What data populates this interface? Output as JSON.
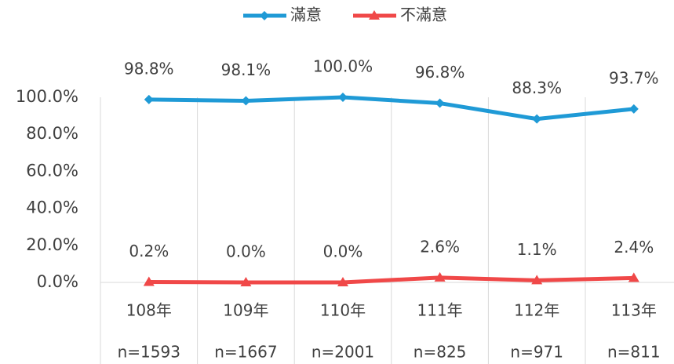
{
  "chart_data": {
    "type": "line",
    "categories": [
      "108年",
      "109年",
      "110年",
      "111年",
      "112年",
      "113年"
    ],
    "category_notes": [
      "n=1593",
      "n=1667",
      "n=2001",
      "n=825",
      "n=971",
      "n=811"
    ],
    "series": [
      {
        "name": "滿意",
        "color": "#1f9ad6",
        "marker": "diamond",
        "values": [
          98.8,
          98.1,
          100.0,
          96.8,
          88.3,
          93.7
        ],
        "value_labels": [
          "98.8%",
          "98.1%",
          "100.0%",
          "96.8%",
          "88.3%",
          "93.7%"
        ]
      },
      {
        "name": "不滿意",
        "color": "#f04848",
        "marker": "triangle",
        "values": [
          0.2,
          0.0,
          0.0,
          2.6,
          1.1,
          2.4
        ],
        "value_labels": [
          "0.2%",
          "0.0%",
          "0.0%",
          "2.6%",
          "1.1%",
          "2.4%"
        ]
      }
    ],
    "ylim": [
      0,
      100
    ],
    "yticks": [
      {
        "value": 0,
        "label": "0.0%"
      },
      {
        "value": 20,
        "label": "20.0%"
      },
      {
        "value": 40,
        "label": "40.0%"
      },
      {
        "value": 60,
        "label": "60.0%"
      },
      {
        "value": 80,
        "label": "80.0%"
      },
      {
        "value": 100,
        "label": "100.0%"
      }
    ],
    "legend": "top"
  }
}
